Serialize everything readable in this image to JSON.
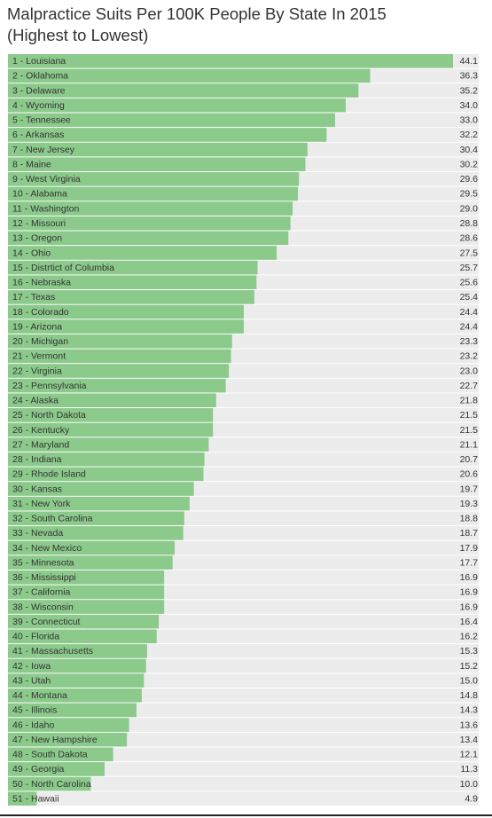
{
  "chart_data": {
    "type": "bar",
    "orientation": "horizontal",
    "title": "Malpractice Suits Per 100K People By State In 2015 (Highest to Lowest)",
    "categories": [
      "1 - Louisiana",
      "2 - Oklahoma",
      "3 - Delaware",
      "4 - Wyoming",
      "5 - Tennessee",
      "6 - Arkansas",
      "7 - New Jersey",
      "8 - Maine",
      "9 - West Virginia",
      "10 - Alabama",
      "11 - Washington",
      "12 - Missouri",
      "13 - Oregon",
      "14 - Ohio",
      "15 - Distrtict of Columbia",
      "16 - Nebraska",
      "17 - Texas",
      "18 - Colorado",
      "19 - Arizona",
      "20 - Michigan",
      "21 - Vermont",
      "22 - Virginia",
      "23 - Pennsylvania",
      "24 - Alaska",
      "25 - North Dakota",
      "26 - Kentucky",
      "27 - Maryland",
      "28 - Indiana",
      "29 - Rhode Island",
      "30 - Kansas",
      "31 - New York",
      "32 - South Carolina",
      "33 - Nevada",
      "34 - New Mexico",
      "35 - Minnesota",
      "36 - Mississippi",
      "37 - California",
      "38 - Wisconsin",
      "39 - Connecticut",
      "40 - Florida",
      "41 - Massachusetts",
      "42 - Iowa",
      "43 - Utah",
      "44 - Montana",
      "45 - Illinois",
      "46 - Idaho",
      "47 - New Hampshire",
      "48 - South Dakota",
      "49 - Georgia",
      "50 - North Carolina",
      "51 - Hawaii"
    ],
    "values": [
      44.1,
      36.3,
      35.2,
      34.0,
      33.0,
      32.2,
      30.4,
      30.2,
      29.6,
      29.5,
      29.0,
      28.8,
      28.6,
      27.5,
      25.7,
      25.6,
      25.4,
      24.4,
      24.4,
      23.3,
      23.2,
      23.0,
      22.7,
      21.8,
      21.5,
      21.5,
      21.1,
      20.7,
      20.6,
      19.7,
      19.3,
      18.8,
      18.7,
      17.9,
      17.7,
      16.9,
      16.9,
      16.9,
      16.4,
      16.2,
      15.3,
      15.2,
      15.0,
      14.8,
      14.3,
      13.6,
      13.4,
      12.1,
      11.3,
      10.0,
      4.9
    ],
    "value_labels": [
      "44.1",
      "36.3",
      "35.2",
      "34.0",
      "33.0",
      "32.2",
      "30.4",
      "30.2",
      "29.6",
      "29.5",
      "29.0",
      "28.8",
      "28.6",
      "27.5",
      "25.7",
      "25.6",
      "25.4",
      "24.4",
      "24.4",
      "23.3",
      "23.2",
      "23.0",
      "22.7",
      "21.8",
      "21.5",
      "21.5",
      "21.1",
      "20.7",
      "20.6",
      "19.7",
      "19.3",
      "18.8",
      "18.7",
      "17.9",
      "17.7",
      "16.9",
      "16.9",
      "16.9",
      "16.4",
      "16.2",
      "15.3",
      "15.2",
      "15.0",
      "14.8",
      "14.3",
      "13.6",
      "13.4",
      "12.1",
      "11.3",
      "10.0",
      "4.9"
    ],
    "color": "#8cca8c",
    "xlim": [
      2.2,
      44.1
    ]
  }
}
